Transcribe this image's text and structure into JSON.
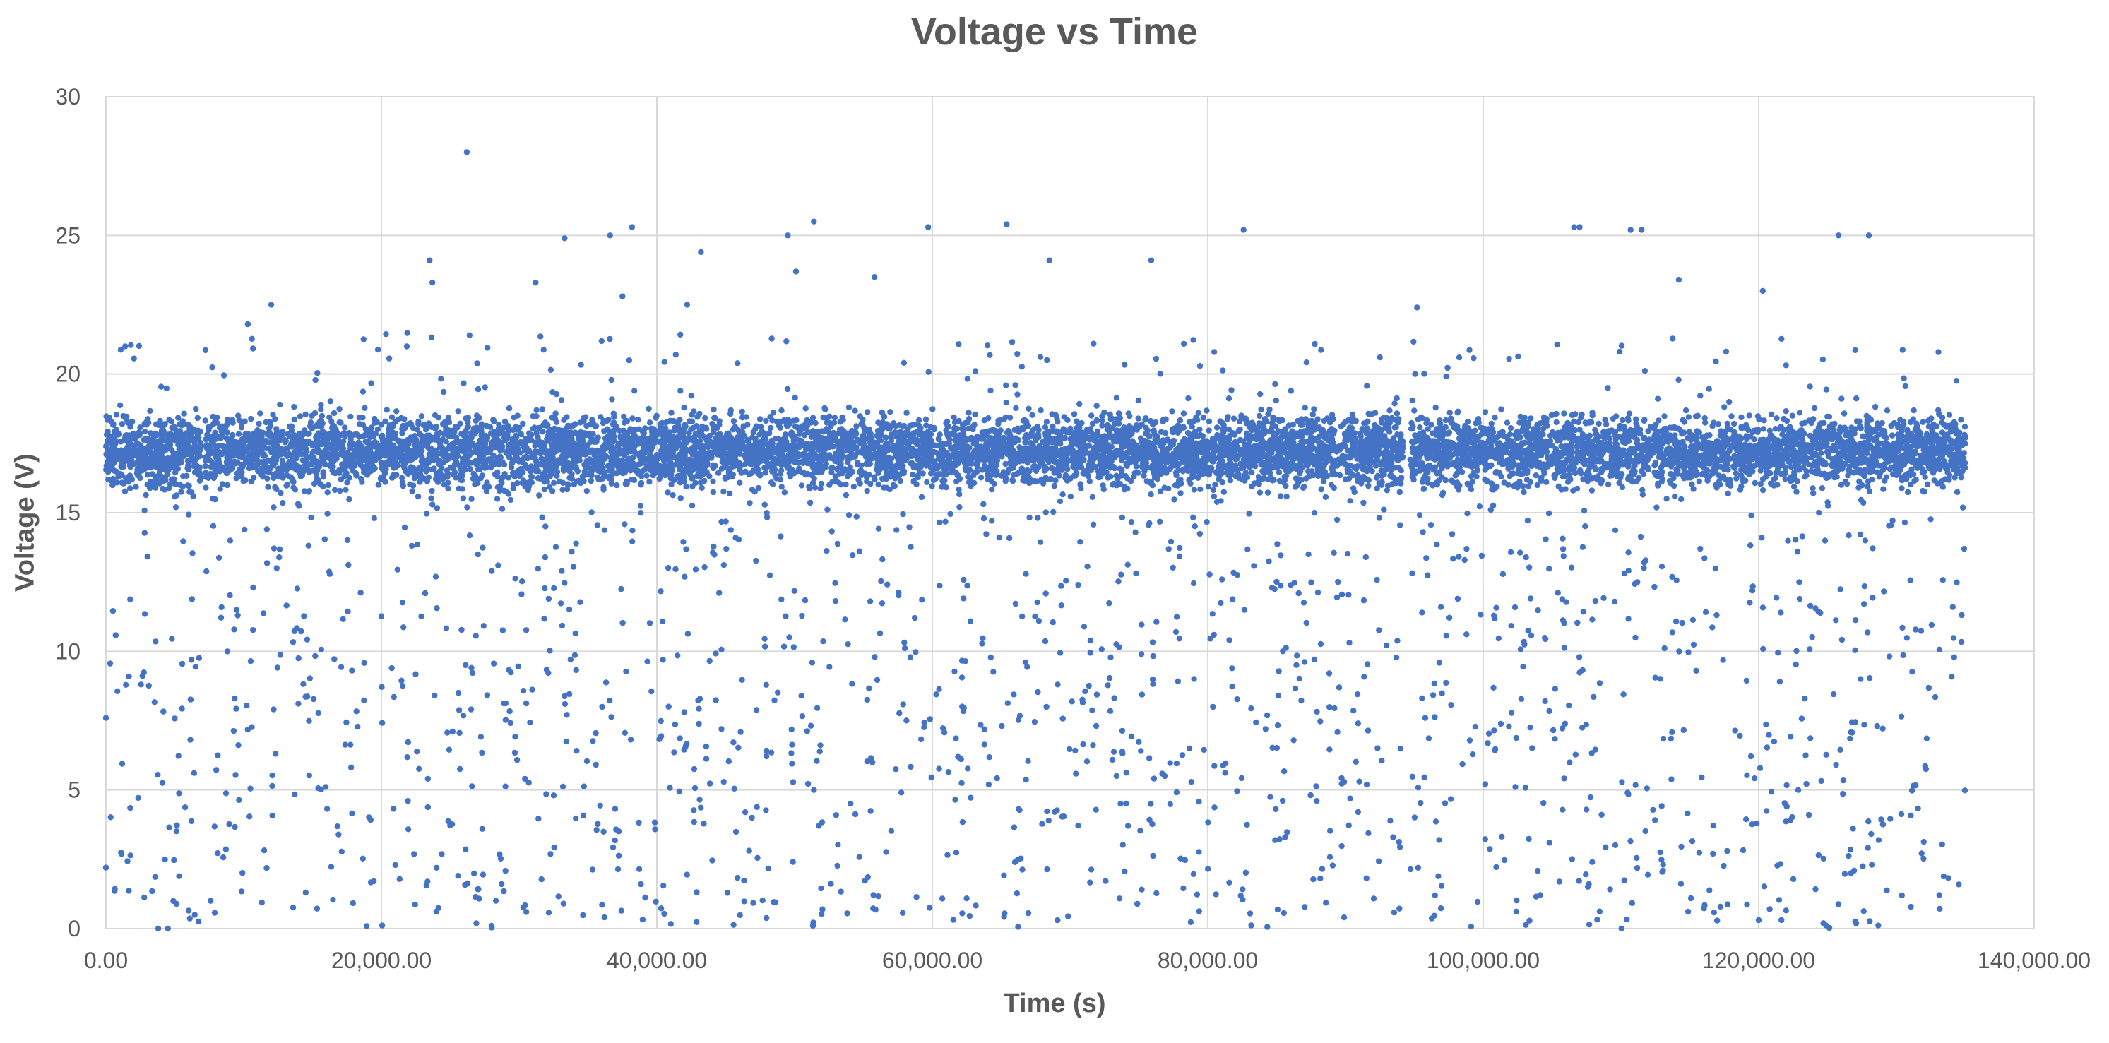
{
  "colors": {
    "series": "#4472C4",
    "grid": "#D9D9D9",
    "text": "#595959",
    "background": "#FFFFFF"
  },
  "chart_data": {
    "type": "scatter",
    "title": "Voltage vs Time",
    "xlabel": "Time (s)",
    "ylabel": "Voltage (V)",
    "xlim": [
      0,
      140000
    ],
    "ylim": [
      0,
      30
    ],
    "grid": true,
    "legend": "none",
    "x_ticks": [
      "0.00",
      "20,000.00",
      "40,000.00",
      "60,000.00",
      "80,000.00",
      "100,000.00",
      "120,000.00",
      "140,000.00"
    ],
    "y_ticks": [
      "0",
      "5",
      "10",
      "15",
      "20",
      "25",
      "30"
    ],
    "series": [
      {
        "marker_color": "#4472C4",
        "x_range": [
          0,
          135000
        ],
        "dense_band": {
          "center": 17.2,
          "low": 16.0,
          "high": 18.5
        },
        "gaps": [
          [
            6900,
            7200
          ],
          [
            94200,
            94700
          ]
        ],
        "outliers": [
          {
            "x": 12000,
            "y": 22.5
          },
          {
            "x": 10300,
            "y": 21.8
          },
          {
            "x": 1400,
            "y": 21.0
          },
          {
            "x": 23500,
            "y": 24.1
          },
          {
            "x": 23700,
            "y": 23.3
          },
          {
            "x": 26200,
            "y": 28.0
          },
          {
            "x": 31200,
            "y": 23.3
          },
          {
            "x": 33300,
            "y": 24.9
          },
          {
            "x": 36600,
            "y": 25.0
          },
          {
            "x": 38200,
            "y": 25.3
          },
          {
            "x": 37500,
            "y": 22.8
          },
          {
            "x": 43200,
            "y": 24.4
          },
          {
            "x": 49500,
            "y": 25.0
          },
          {
            "x": 51400,
            "y": 25.5
          },
          {
            "x": 50100,
            "y": 23.7
          },
          {
            "x": 55800,
            "y": 23.5
          },
          {
            "x": 59700,
            "y": 25.3
          },
          {
            "x": 65400,
            "y": 25.4
          },
          {
            "x": 68500,
            "y": 24.1
          },
          {
            "x": 75900,
            "y": 24.1
          },
          {
            "x": 82600,
            "y": 25.2
          },
          {
            "x": 106600,
            "y": 25.3
          },
          {
            "x": 107000,
            "y": 25.3
          },
          {
            "x": 110700,
            "y": 25.2
          },
          {
            "x": 111500,
            "y": 25.2
          },
          {
            "x": 114200,
            "y": 23.4
          },
          {
            "x": 120300,
            "y": 23.0
          },
          {
            "x": 125800,
            "y": 25.0
          },
          {
            "x": 128000,
            "y": 25.0
          },
          {
            "x": 95200,
            "y": 22.4
          },
          {
            "x": 42200,
            "y": 22.5
          },
          {
            "x": 26400,
            "y": 21.4
          },
          {
            "x": 0,
            "y": 7.6
          },
          {
            "x": 0,
            "y": 2.2
          },
          {
            "x": 3800,
            "y": 0
          },
          {
            "x": 4500,
            "y": 0
          },
          {
            "x": 7600,
            "y": 1.0
          },
          {
            "x": 14500,
            "y": 1.3
          },
          {
            "x": 96500,
            "y": 1.2
          },
          {
            "x": 120800,
            "y": 0.7
          },
          {
            "x": 130400,
            "y": 1.2
          },
          {
            "x": 126700,
            "y": 2.0
          }
        ]
      }
    ]
  }
}
